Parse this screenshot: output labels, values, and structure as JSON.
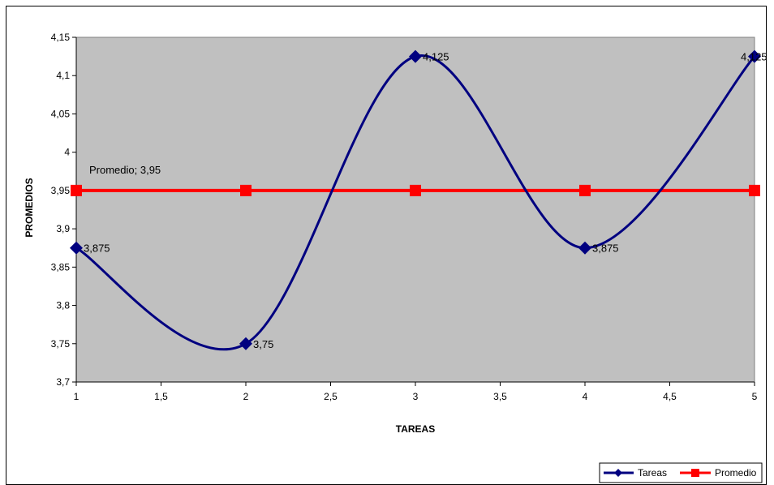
{
  "chart_data": {
    "type": "line",
    "title": "",
    "xlabel": "TAREAS",
    "ylabel": "PROMEDIOS",
    "xlim": [
      1,
      5
    ],
    "ylim": [
      3.7,
      4.15
    ],
    "x_ticks": [
      "1",
      "1,5",
      "2",
      "2,5",
      "3",
      "3,5",
      "4",
      "4,5",
      "5"
    ],
    "x_tick_values": [
      1,
      1.5,
      2,
      2.5,
      3,
      3.5,
      4,
      4.5,
      5
    ],
    "y_ticks": [
      "3,7",
      "3,75",
      "3,8",
      "3,85",
      "3,9",
      "3,95",
      "4",
      "4,05",
      "4,1",
      "4,15"
    ],
    "y_tick_values": [
      3.7,
      3.75,
      3.8,
      3.85,
      3.9,
      3.95,
      4,
      4.05,
      4.1,
      4.15
    ],
    "grid": false,
    "plot_background": "#c0c0c0",
    "legend_position": "bottom-right",
    "series": [
      {
        "name": "Tareas",
        "color": "#000080",
        "marker": "diamond",
        "smooth": true,
        "x": [
          1,
          2,
          3,
          4,
          5
        ],
        "values": [
          3.875,
          3.75,
          4.125,
          3.875,
          4.125
        ],
        "labels": [
          "3,875",
          "3,75",
          "4,125",
          "3,875",
          "4,125"
        ]
      },
      {
        "name": "Promedio",
        "color": "#ff0000",
        "marker": "square",
        "smooth": false,
        "x": [
          1,
          2,
          3,
          4,
          5
        ],
        "values": [
          3.95,
          3.95,
          3.95,
          3.95,
          3.95
        ],
        "annotation": "Promedio; 3,95"
      }
    ]
  }
}
